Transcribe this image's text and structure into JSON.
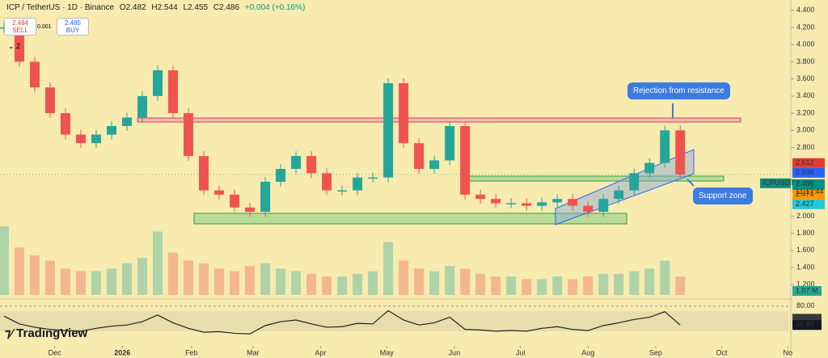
{
  "header": {
    "symbol": "ICP / TetherUS · 1D · Binance",
    "open": "O2.482",
    "high": "H2.544",
    "low": "L2.455",
    "close": "C2.486",
    "change": "+0.004 (+0.16%)"
  },
  "trade": {
    "sell_price": "2.484",
    "sell": "SELL",
    "spread": "0.001",
    "buy_price": "2.485",
    "buy": "BUY",
    "indicators": "2"
  },
  "annotations": {
    "resistance": "Rejection from resistance",
    "support": "Support zone"
  },
  "logo": "TradingView",
  "chart_data": {
    "type": "candlestick",
    "up_color": "#26a69a",
    "down_color": "#ef5350",
    "values": [
      4.2,
      3.8,
      3.5,
      3.2,
      2.95,
      2.85,
      2.95,
      3.05,
      3.15,
      3.4,
      3.7,
      3.2,
      2.7,
      2.3,
      2.25,
      2.1,
      2.05,
      2.4,
      2.55,
      2.7,
      2.5,
      2.3,
      2.3,
      2.45,
      2.45,
      3.55,
      2.85,
      2.55,
      2.65,
      3.05,
      2.25,
      2.2,
      2.15,
      2.15,
      2.12,
      2.16,
      2.2,
      2.12,
      2.05,
      2.2,
      2.3,
      2.5,
      2.62,
      3.0,
      2.486
    ],
    "volume": [
      2.6,
      1.8,
      1.5,
      1.3,
      1.0,
      0.9,
      0.9,
      1.0,
      1.2,
      1.4,
      2.4,
      1.6,
      1.3,
      1.2,
      1.0,
      0.9,
      1.1,
      1.2,
      1.0,
      0.9,
      0.8,
      0.7,
      0.7,
      0.8,
      0.9,
      2.0,
      1.3,
      1.0,
      0.9,
      1.1,
      1.0,
      0.8,
      0.7,
      0.7,
      0.6,
      0.6,
      0.7,
      0.6,
      0.7,
      0.8,
      0.8,
      0.9,
      1.0,
      1.3,
      0.7
    ],
    "volume_label": "1.07 M",
    "rsi": [
      62,
      48,
      42,
      38,
      36,
      35,
      40,
      44,
      46,
      52,
      64,
      50,
      40,
      33,
      34,
      31,
      30,
      45,
      52,
      55,
      48,
      42,
      43,
      49,
      48,
      72,
      55,
      46,
      50,
      60,
      38,
      37,
      35,
      36,
      35,
      40,
      43,
      38,
      36,
      45,
      50,
      56,
      60,
      70,
      46
    ],
    "rsi_lim": [
      20,
      90
    ],
    "rsi_ticks": [
      {
        "value": 80,
        "label": "80.00"
      }
    ],
    "rsi_labels": [
      {
        "value": 57.37,
        "label": "57.37"
      },
      {
        "value": 45.89,
        "label": "45.89"
      }
    ],
    "price_labels": [
      {
        "value": 2.612,
        "label": "2.612",
        "color": "#e53935"
      },
      {
        "value": 2.598,
        "label": "2.598",
        "color": "#2962ff"
      },
      {
        "value": 2.486,
        "label": "2.486",
        "color": "#0a8f82"
      },
      {
        "value": 2.474,
        "label": "2.474",
        "color": "#ff9800"
      },
      {
        "value": 2.427,
        "label": "2.427",
        "color": "#26c6da"
      }
    ],
    "symbol_label": "ICPUSDT",
    "countdown": "11:17:44",
    "xlim": [
      -0.26,
      51.3
    ],
    "ylim": [
      1.08,
      4.52
    ],
    "xticks": [
      {
        "value": 3.3,
        "label": "Dec"
      },
      {
        "value": 7.7,
        "label": "2026"
      },
      {
        "value": 12.2,
        "label": "Feb"
      },
      {
        "value": 16.2,
        "label": "Mar"
      },
      {
        "value": 20.6,
        "label": "Apr"
      },
      {
        "value": 24.9,
        "label": "May"
      },
      {
        "value": 29.3,
        "label": "Jun"
      },
      {
        "value": 33.6,
        "label": "Jul"
      },
      {
        "value": 38.0,
        "label": "Aug"
      },
      {
        "value": 42.4,
        "label": "Sep"
      },
      {
        "value": 46.7,
        "label": "Oct"
      },
      {
        "value": 51.0,
        "label": "No"
      }
    ],
    "yticks": [
      {
        "value": 4.4,
        "label": "4.400"
      },
      {
        "value": 4.2,
        "label": "4.200"
      },
      {
        "value": 4.0,
        "label": "4.000"
      },
      {
        "value": 3.8,
        "label": "3.800"
      },
      {
        "value": 3.6,
        "label": "3.600"
      },
      {
        "value": 3.4,
        "label": "3.400"
      },
      {
        "value": 3.2,
        "label": "3.200"
      },
      {
        "value": 3.0,
        "label": "3.000"
      },
      {
        "value": 2.8,
        "label": "2.800"
      },
      {
        "value": 2.0,
        "label": "2.000"
      },
      {
        "value": 1.8,
        "label": "1.800"
      },
      {
        "value": 1.6,
        "label": "1.600"
      },
      {
        "value": 1.4,
        "label": "1.400"
      },
      {
        "value": 1.2,
        "label": "1.200"
      }
    ]
  }
}
